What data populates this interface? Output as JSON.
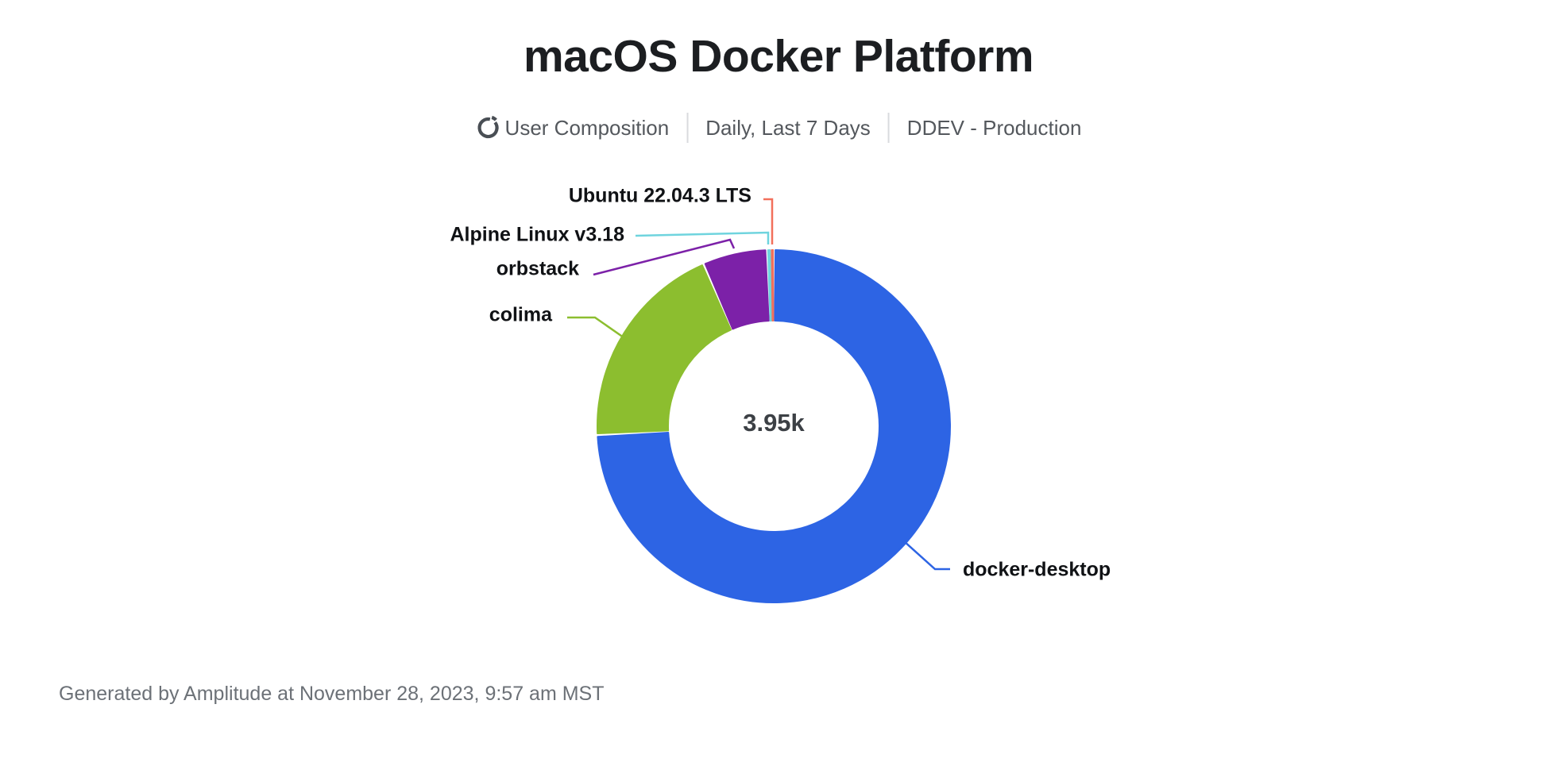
{
  "header": {
    "title": "macOS Docker Platform",
    "chart_type_label": "User Composition",
    "date_range_label": "Daily, Last 7 Days",
    "project_label": "DDEV - Production",
    "icon": "donut-chart-icon"
  },
  "chart_data": {
    "type": "pie",
    "subtype": "donut",
    "title": "macOS Docker Platform",
    "center_total_label": "3.95k",
    "total_value": 3950,
    "inner_radius_ratio": 0.6,
    "legend_position": "outside-labels-with-leader-lines",
    "segments": [
      {
        "label": "docker-desktop",
        "percent": 74.2,
        "est_value": 2931,
        "color": "#2D64E4"
      },
      {
        "label": "colima",
        "percent": 19.3,
        "est_value": 762,
        "color": "#8CBE2F"
      },
      {
        "label": "orbstack",
        "percent": 5.9,
        "est_value": 233,
        "color": "#7C21A8"
      },
      {
        "label": "Alpine Linux v3.18",
        "percent": 0.35,
        "est_value": 14,
        "color": "#6FD4DE"
      },
      {
        "label": "Ubuntu 22.04.3 LTS",
        "percent": 0.25,
        "est_value": 10,
        "color": "#F2705C"
      }
    ]
  },
  "footer": {
    "text": "Generated by Amplitude at November 28, 2023, 9:57 am MST"
  },
  "colors": {
    "title_text": "#1c1e21",
    "subtitle_text": "#54585d",
    "divider": "#d9dbde",
    "label_text": "#101215",
    "center_total_text": "#3c4045",
    "footer_text": "#6c7177",
    "background": "#ffffff"
  }
}
